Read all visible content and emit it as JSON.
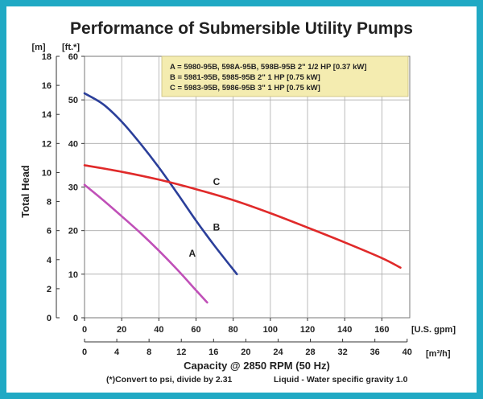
{
  "chart_data": {
    "type": "line",
    "title": "Performance of Submersible Utility Pumps",
    "ylabel": "Total Head",
    "y_unit_m": "[m]",
    "y_unit_ft": "[ft.*]",
    "x_unit_gpm": "[U.S. gpm]",
    "x_unit_m3h": "[m³/h]",
    "xlabel": "Capacity @ 2850 RPM (50 Hz)",
    "note_psi": "(*)Convert to psi, divide by 2.31",
    "note_liquid": "Liquid - Water specific gravity 1.0",
    "xlim_gpm": [
      0,
      180
    ],
    "ylim_ft": [
      0,
      60
    ],
    "ylim_m": [
      0,
      18
    ],
    "xlim_m3h": [
      0,
      40
    ],
    "ticks_ft": [
      "0",
      "10",
      "20",
      "30",
      "40",
      "50",
      "60"
    ],
    "ticks_m": [
      "0",
      "2",
      "4",
      "6",
      "8",
      "10",
      "12",
      "14",
      "16",
      "18"
    ],
    "ticks_gpm": [
      "0",
      "20",
      "40",
      "60",
      "80",
      "100",
      "120",
      "140",
      "160"
    ],
    "ticks_m3h": [
      "0",
      "4",
      "8",
      "12",
      "16",
      "20",
      "24",
      "28",
      "32",
      "36",
      "40"
    ],
    "grid": true,
    "legend_position": "top-right",
    "legend": [
      "A = 5980-95B, 598A-95B, 598B-95B 2\" 1/2 HP [0.37 kW]",
      "B = 5981-95B, 5985-95B 2\" 1 HP [0.75 kW]",
      "C = 5983-95B, 5986-95B 3\" 1 HP [0.75 kW]"
    ],
    "series": [
      {
        "name": "A",
        "color": "#c050b8",
        "x": [
          0,
          10,
          20,
          30,
          40,
          50,
          60,
          66
        ],
        "y": [
          30.5,
          27,
          23.3,
          19.5,
          15.4,
          11,
          6.3,
          3.5
        ]
      },
      {
        "name": "B",
        "color": "#2b3f9a",
        "x": [
          0,
          10,
          20,
          30,
          40,
          50,
          60,
          70,
          82
        ],
        "y": [
          51.5,
          49,
          45,
          40,
          34.5,
          28.5,
          22.3,
          16.5,
          10
        ]
      },
      {
        "name": "C",
        "color": "#e02a2a",
        "x": [
          0,
          20,
          40,
          60,
          80,
          100,
          120,
          140,
          160,
          170
        ],
        "y": [
          35,
          33.5,
          31.7,
          29.5,
          27,
          24,
          20.7,
          17.3,
          13.7,
          11.5
        ]
      }
    ]
  }
}
